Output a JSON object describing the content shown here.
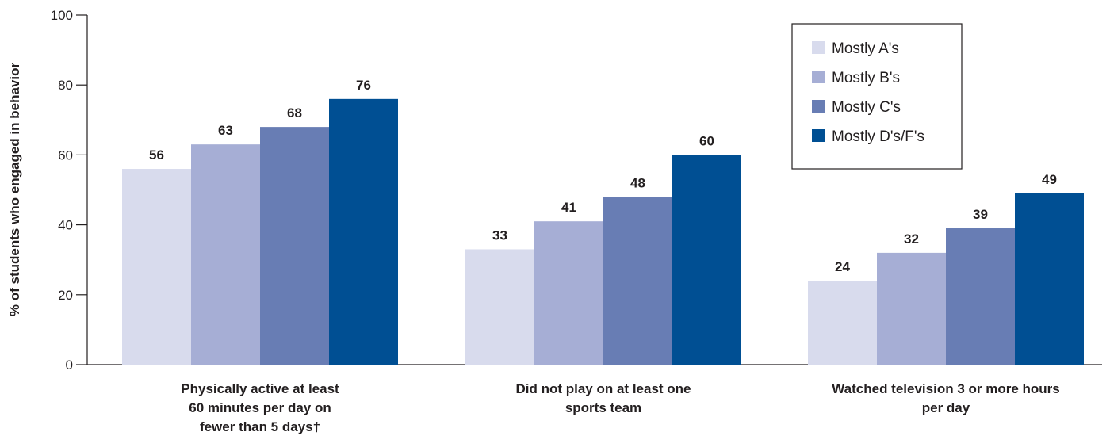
{
  "chart_data": {
    "type": "bar",
    "ylabel": "% of students who engaged in behavior",
    "ylim": [
      0,
      100
    ],
    "yticks": [
      "0",
      "20",
      "40",
      "60",
      "80",
      "100"
    ],
    "grid": false,
    "legend_position": "top-right",
    "categories": [
      {
        "lines": [
          "Physically active at least",
          "60 minutes per day on",
          "fewer than 5 days†"
        ]
      },
      {
        "lines": [
          "Did not play on at least one",
          "sports team"
        ]
      },
      {
        "lines": [
          "Watched television 3 or more hours",
          "per day"
        ]
      }
    ],
    "series": [
      {
        "name": "Mostly A's",
        "color": "#d8dbed",
        "values": [
          56,
          33,
          24
        ]
      },
      {
        "name": "Mostly B's",
        "color": "#a6aed5",
        "values": [
          63,
          41,
          32
        ]
      },
      {
        "name": "Mostly C's",
        "color": "#687db4",
        "values": [
          68,
          48,
          39
        ]
      },
      {
        "name": "Mostly D's/F's",
        "color": "#004f93",
        "values": [
          76,
          60,
          49
        ]
      }
    ]
  }
}
